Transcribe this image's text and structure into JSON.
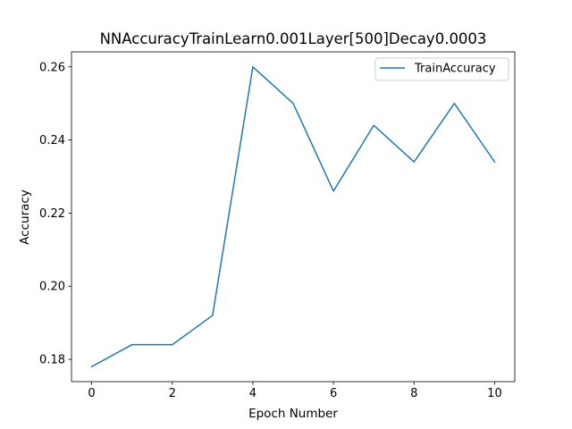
{
  "chart_data": {
    "type": "line",
    "title": "NNAccuracyTrainLearn0.001Layer[500]Decay0.0003",
    "xlabel": "Epoch Number",
    "ylabel": "Accuracy",
    "xlim": [
      -0.5,
      10.5
    ],
    "ylim": [
      0.1739,
      0.2641
    ],
    "xticks": [
      0,
      2,
      4,
      6,
      8,
      10
    ],
    "xtick_labels": [
      "0",
      "2",
      "4",
      "6",
      "8",
      "10"
    ],
    "yticks": [
      0.18,
      0.2,
      0.22,
      0.24,
      0.26
    ],
    "ytick_labels": [
      "0.18",
      "0.20",
      "0.22",
      "0.24",
      "0.26"
    ],
    "grid": false,
    "legend_position": "top-right",
    "series": [
      {
        "name": "TrainAccuracy",
        "color": "#1f77b4",
        "x": [
          0,
          1,
          2,
          3,
          4,
          5,
          6,
          7,
          8,
          9,
          10
        ],
        "y": [
          0.178,
          0.184,
          0.184,
          0.192,
          0.26,
          0.25,
          0.226,
          0.244,
          0.234,
          0.25,
          0.234
        ]
      }
    ]
  }
}
